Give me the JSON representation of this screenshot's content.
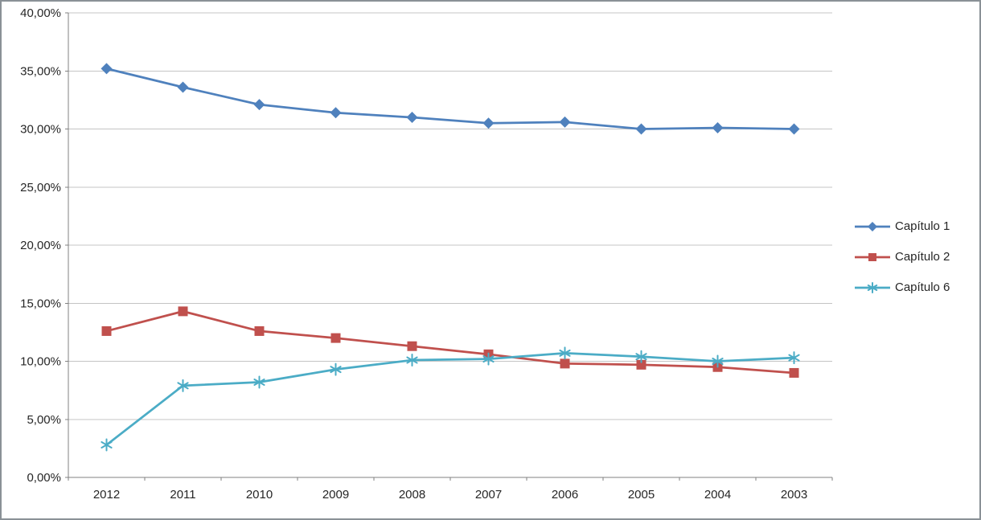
{
  "chart_data": {
    "type": "line",
    "title": "",
    "xlabel": "",
    "ylabel": "",
    "categories": [
      "2012",
      "2011",
      "2010",
      "2009",
      "2008",
      "2007",
      "2006",
      "2005",
      "2004",
      "2003"
    ],
    "series": [
      {
        "name": "Capítulo 1",
        "color": "#4F81BD",
        "marker": "diamond",
        "values": [
          35.2,
          33.6,
          32.1,
          31.4,
          31.0,
          30.5,
          30.6,
          30.0,
          30.1,
          30.0
        ]
      },
      {
        "name": "Capítulo 2",
        "color": "#C0504D",
        "marker": "square",
        "values": [
          12.6,
          14.3,
          12.6,
          12.0,
          11.3,
          10.6,
          9.8,
          9.7,
          9.5,
          9.0
        ]
      },
      {
        "name": "Capítulo 6",
        "color": "#4BACC6",
        "marker": "asterisk",
        "values": [
          2.8,
          7.9,
          8.2,
          9.3,
          10.1,
          10.2,
          10.7,
          10.4,
          10.0,
          10.3
        ]
      }
    ],
    "ylim": [
      0,
      40
    ],
    "ytick_step": 5,
    "ytick_labels": [
      "0,00%",
      "5,00%",
      "10,00%",
      "15,00%",
      "20,00%",
      "25,00%",
      "30,00%",
      "35,00%",
      "40,00%"
    ],
    "grid": true,
    "legend_position": "right",
    "colors": {
      "grid": "#c4c4c4",
      "axis": "#808080",
      "text": "#262626",
      "frame": "#8a9196"
    }
  }
}
